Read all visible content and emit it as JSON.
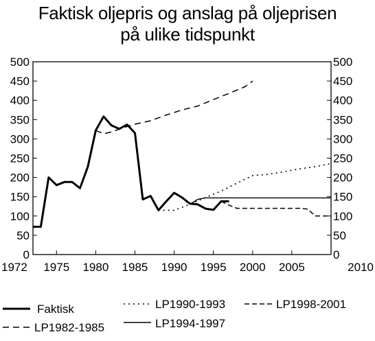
{
  "chart_data": {
    "type": "line",
    "title": [
      "Faktisk oljepris og anslag på oljeprisen",
      "på ulike tidspunkt"
    ],
    "xlabel": "",
    "ylabel": "",
    "xlim": [
      1972,
      2010
    ],
    "ylim": [
      0,
      500
    ],
    "x_ticks": [
      1972,
      1975,
      1980,
      1985,
      1990,
      1995,
      2000,
      2005,
      2010
    ],
    "y_ticks": [
      0,
      50,
      100,
      150,
      200,
      250,
      300,
      350,
      400,
      450,
      500
    ],
    "y_axis_right": true,
    "grid": false,
    "legend_position": "bottom",
    "series": [
      {
        "name": "Faktisk",
        "style": "solid-thick",
        "color": "#000000",
        "points": [
          [
            1972,
            72
          ],
          [
            1973,
            72
          ],
          [
            1974,
            200
          ],
          [
            1975,
            180
          ],
          [
            1976,
            188
          ],
          [
            1977,
            188
          ],
          [
            1978,
            172
          ],
          [
            1979,
            228
          ],
          [
            1980,
            322
          ],
          [
            1981,
            358
          ],
          [
            1982,
            335
          ],
          [
            1983,
            326
          ],
          [
            1984,
            337
          ],
          [
            1985,
            315
          ],
          [
            1986,
            143
          ],
          [
            1987,
            152
          ],
          [
            1988,
            115
          ],
          [
            1989,
            138
          ],
          [
            1990,
            160
          ],
          [
            1991,
            148
          ],
          [
            1992,
            132
          ],
          [
            1993,
            130
          ],
          [
            1994,
            119
          ],
          [
            1995,
            116
          ],
          [
            1996,
            138
          ],
          [
            1997,
            138
          ]
        ]
      },
      {
        "name": "LP1982-1985",
        "style": "long-dash",
        "color": "#000000",
        "points": [
          [
            1980,
            322
          ],
          [
            1981,
            313
          ],
          [
            1982,
            318
          ],
          [
            1983,
            325
          ],
          [
            1984,
            332
          ],
          [
            1985,
            338
          ],
          [
            1987,
            347
          ],
          [
            1989,
            362
          ],
          [
            1991,
            375
          ],
          [
            1993,
            385
          ],
          [
            1995,
            402
          ],
          [
            1997,
            418
          ],
          [
            1999,
            435
          ],
          [
            2000,
            450
          ]
        ]
      },
      {
        "name": "LP1990-1993",
        "style": "dotted",
        "color": "#000000",
        "points": [
          [
            1988,
            115
          ],
          [
            1990,
            115
          ],
          [
            1992,
            130
          ],
          [
            1994,
            148
          ],
          [
            1996,
            165
          ],
          [
            1998,
            185
          ],
          [
            2000,
            205
          ],
          [
            2002,
            208
          ],
          [
            2004,
            215
          ],
          [
            2006,
            222
          ],
          [
            2008,
            228
          ],
          [
            2010,
            236
          ]
        ]
      },
      {
        "name": "LP1994-1997",
        "style": "solid-thin",
        "color": "#000000",
        "points": [
          [
            1992,
            130
          ],
          [
            1993,
            143
          ],
          [
            1994,
            147
          ],
          [
            1996,
            147
          ],
          [
            2000,
            147
          ],
          [
            2005,
            147
          ],
          [
            2010,
            147
          ]
        ]
      },
      {
        "name": "LP1998-2001",
        "style": "medium-dash",
        "color": "#000000",
        "points": [
          [
            1996,
            138
          ],
          [
            1997,
            128
          ],
          [
            1998,
            120
          ],
          [
            2000,
            120
          ],
          [
            2005,
            120
          ],
          [
            2006,
            120
          ],
          [
            2007,
            118
          ],
          [
            2008,
            100
          ],
          [
            2010,
            100
          ]
        ]
      }
    ]
  }
}
